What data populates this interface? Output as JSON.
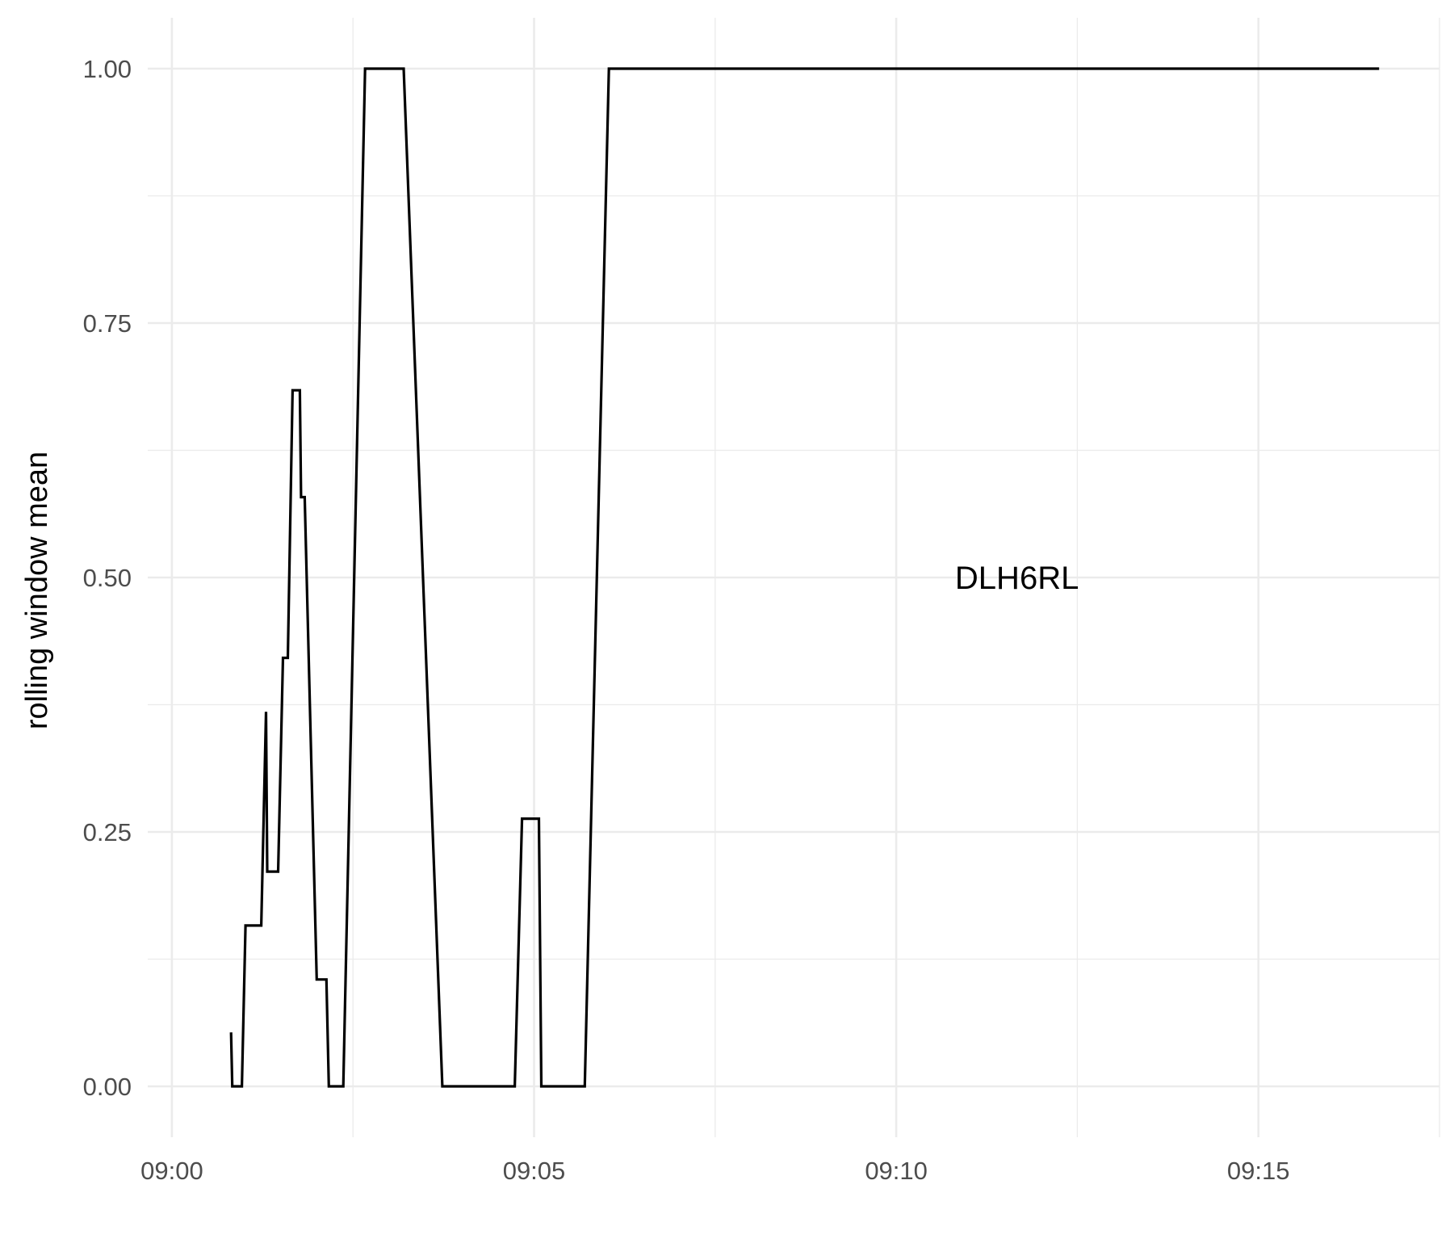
{
  "chart_data": {
    "type": "line",
    "title": "",
    "xlabel": "",
    "ylabel": "rolling window mean",
    "x_unit": "time",
    "xlim": [
      "08:59:40",
      "09:17:30"
    ],
    "ylim": [
      -0.05,
      1.05
    ],
    "x_ticks": [
      "09:00",
      "09:05",
      "09:10",
      "09:15"
    ],
    "y_ticks": [
      "0.00",
      "0.25",
      "0.50",
      "0.75",
      "1.00"
    ],
    "grid": true,
    "legend": "none",
    "annotation": {
      "text": "DLH6RL",
      "x": "09:11:40",
      "y": 0.5
    },
    "series": [
      {
        "color": "#000000",
        "points": [
          [
            "09:00:49",
            0.053
          ],
          [
            "09:00:50",
            0.0
          ],
          [
            "09:00:58",
            0.0
          ],
          [
            "09:01:01",
            0.158
          ],
          [
            "09:01:14",
            0.158
          ],
          [
            "09:01:18",
            0.368
          ],
          [
            "09:01:19",
            0.211
          ],
          [
            "09:01:28",
            0.211
          ],
          [
            "09:01:32",
            0.421
          ],
          [
            "09:01:36",
            0.421
          ],
          [
            "09:01:40",
            0.684
          ],
          [
            "09:01:46",
            0.684
          ],
          [
            "09:01:47",
            0.579
          ],
          [
            "09:01:50",
            0.579
          ],
          [
            "09:02:00",
            0.105
          ],
          [
            "09:02:08",
            0.105
          ],
          [
            "09:02:10",
            0.0
          ],
          [
            "09:02:22",
            0.0
          ],
          [
            "09:02:40",
            1.0
          ],
          [
            "09:03:12",
            1.0
          ],
          [
            "09:03:44",
            0.0
          ],
          [
            "09:04:44",
            0.0
          ],
          [
            "09:04:50",
            0.263
          ],
          [
            "09:05:04",
            0.263
          ],
          [
            "09:05:06",
            0.0
          ],
          [
            "09:05:42",
            0.0
          ],
          [
            "09:06:02",
            1.0
          ],
          [
            "09:16:40",
            1.0
          ]
        ]
      }
    ]
  }
}
